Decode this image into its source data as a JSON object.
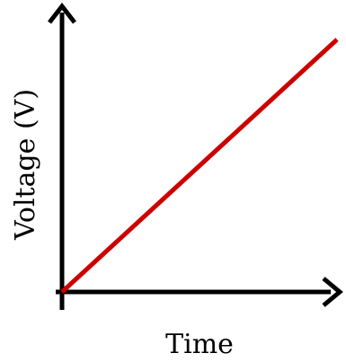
{
  "chart_data": {
    "type": "line",
    "xlabel": "Time",
    "ylabel": "Voltage (V)",
    "series": [
      {
        "x": [
          0,
          1
        ],
        "values": [
          0,
          1
        ]
      }
    ],
    "xlim": [
      0,
      1
    ],
    "ylim": [
      0,
      1
    ],
    "grid": false,
    "ticks": false
  },
  "colors": {
    "axis": "#000000",
    "line": "#cc0000"
  }
}
